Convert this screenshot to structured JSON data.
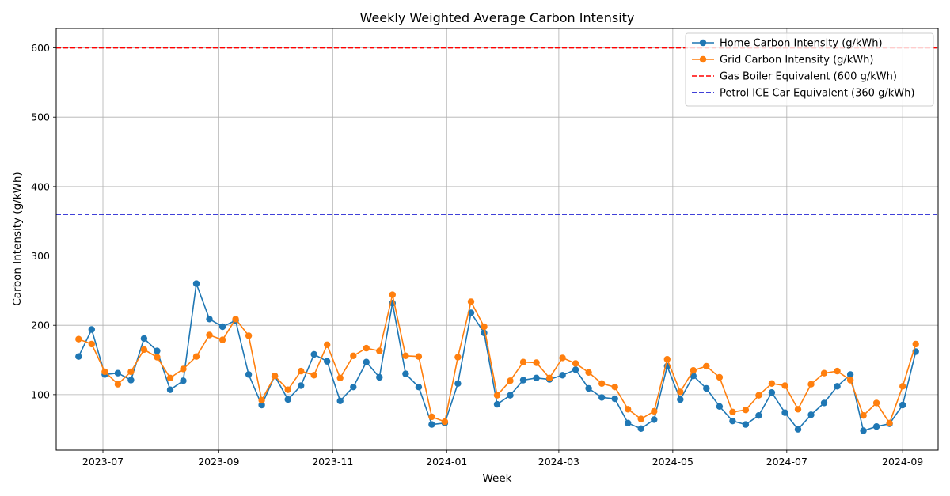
{
  "chart_data": {
    "type": "line",
    "title": "Weekly Weighted Average Carbon Intensity",
    "xlabel": "Week",
    "ylabel": "Carbon Intensity (g/kWh)",
    "xlim": [
      "2023-06-06",
      "2024-09-20"
    ],
    "ylim": [
      20,
      628
    ],
    "grid": true,
    "legend_position": "top-right",
    "x_ticks": [
      "2023-07-01",
      "2023-09-01",
      "2023-11-01",
      "2024-01-01",
      "2024-03-01",
      "2024-05-01",
      "2024-07-01",
      "2024-09-01"
    ],
    "x_tick_labels": [
      "2023-07",
      "2023-09",
      "2023-11",
      "2024-01",
      "2024-03",
      "2024-05",
      "2024-07",
      "2024-09"
    ],
    "y_ticks": [
      100,
      200,
      300,
      400,
      500,
      600
    ],
    "y_tick_labels": [
      "100",
      "200",
      "300",
      "400",
      "500",
      "600"
    ],
    "x_start": "2023-06-18",
    "x_step_days": 7,
    "series": [
      {
        "name": "Home Carbon Intensity (g/kWh)",
        "color": "#1f77b4",
        "values": [
          155,
          194,
          129,
          131,
          121,
          181,
          163,
          107,
          120,
          260,
          209,
          198,
          207,
          129,
          85,
          127,
          93,
          113,
          158,
          148,
          91,
          111,
          147,
          125,
          232,
          130,
          111,
          57,
          59,
          116,
          218,
          189,
          86,
          99,
          121,
          124,
          122,
          128,
          136,
          109,
          96,
          94,
          59,
          51,
          64,
          141,
          93,
          127,
          109,
          83,
          62,
          57,
          70,
          103,
          74,
          50,
          71,
          88,
          112,
          129,
          48,
          54,
          58,
          85,
          162
        ]
      },
      {
        "name": "Grid Carbon Intensity (g/kWh)",
        "color": "#ff7f0e",
        "values": [
          180,
          173,
          133,
          115,
          133,
          165,
          154,
          124,
          137,
          155,
          186,
          179,
          209,
          185,
          92,
          127,
          107,
          134,
          128,
          172,
          124,
          156,
          167,
          163,
          244,
          156,
          155,
          68,
          61,
          154,
          234,
          198,
          99,
          120,
          147,
          146,
          124,
          153,
          145,
          132,
          116,
          111,
          79,
          65,
          76,
          151,
          104,
          135,
          141,
          125,
          75,
          78,
          99,
          116,
          113,
          79,
          115,
          131,
          134,
          121,
          70,
          88,
          59,
          112,
          173
        ]
      },
      {
        "name": "Gas Boiler Equivalent (600 g/kWh)",
        "color": "#ff0000",
        "constant": 600,
        "dashed": true
      },
      {
        "name": "Petrol ICE Car Equivalent (360 g/kWh)",
        "color": "#0000cc",
        "constant": 360,
        "dashed": true
      }
    ]
  }
}
